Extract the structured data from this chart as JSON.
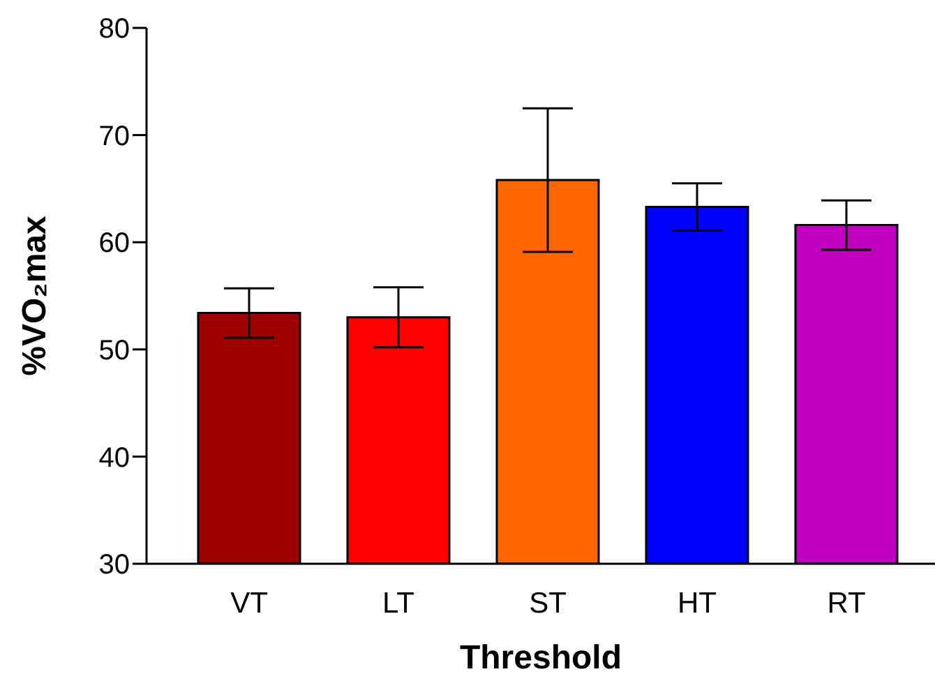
{
  "chart_data": {
    "type": "bar",
    "xlabel": "Threshold",
    "ylabel": "%VO₂max",
    "categories": [
      "VT",
      "LT",
      "ST",
      "HT",
      "RT"
    ],
    "values": [
      53.4,
      53.0,
      65.8,
      63.3,
      61.6
    ],
    "errors": [
      2.3,
      2.8,
      6.7,
      2.2,
      2.3
    ],
    "colors": [
      "#9c0000",
      "#ff0000",
      "#ff6600",
      "#0000ff",
      "#bf00bf"
    ],
    "ylim": [
      30,
      80
    ],
    "yticks": [
      30,
      40,
      50,
      60,
      70,
      80
    ],
    "grid": false,
    "legend": false
  }
}
